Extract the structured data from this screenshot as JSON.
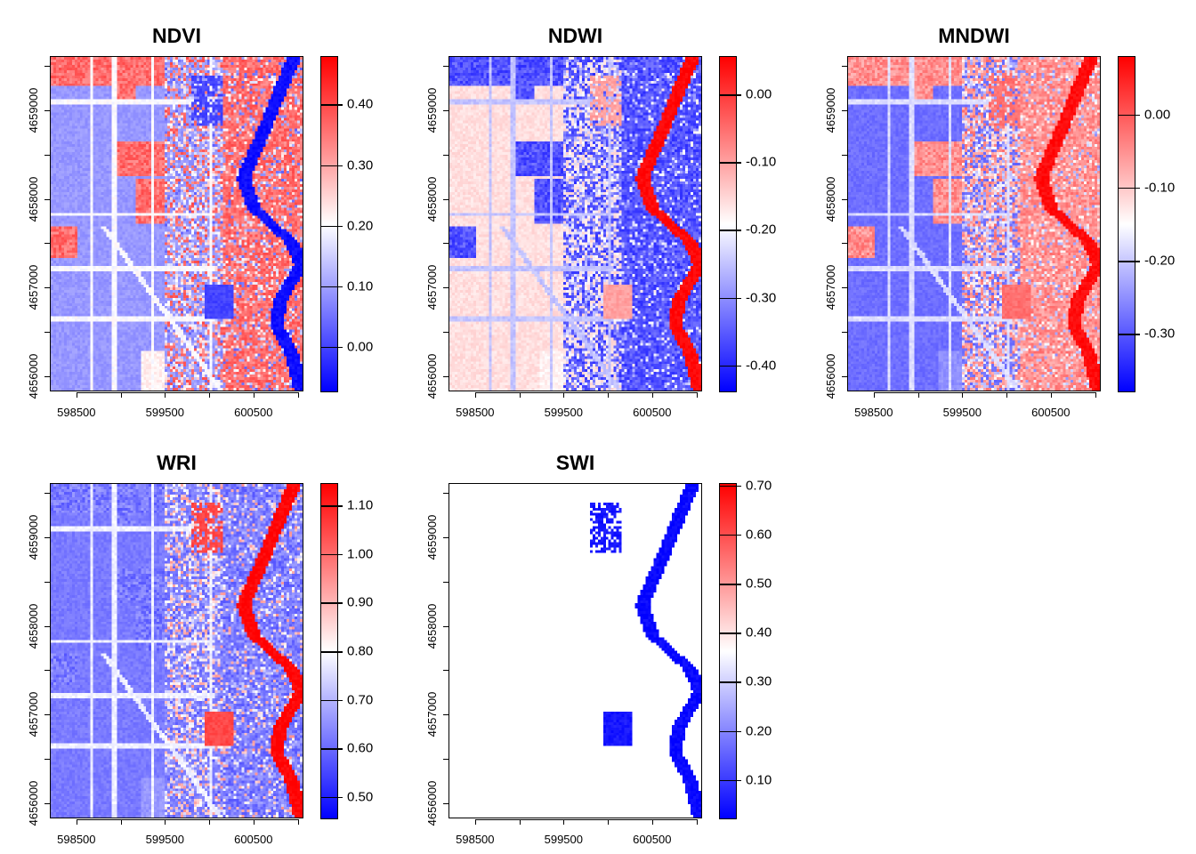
{
  "colors": {
    "low": "#0000ff",
    "mid": "#ffffff",
    "high": "#ff0000",
    "na": "#ffffff"
  },
  "x_axis": {
    "ticks": [
      598500,
      599000,
      599500,
      600000,
      600500,
      601000
    ],
    "labels": [
      "598500",
      "",
      "599500",
      "",
      "600500",
      ""
    ],
    "range": [
      598200,
      601065
    ]
  },
  "y_axis": {
    "ticks": [
      4659500,
      4659000,
      4658500,
      4658000,
      4657500,
      4657000,
      4656500,
      4656000
    ],
    "labels": [
      "",
      "4659000",
      "",
      "4658000",
      "",
      "4657000",
      "",
      "4656000"
    ],
    "range": [
      4655830,
      4659610
    ]
  },
  "panels": [
    {
      "title": "NDVI",
      "legend": {
        "range": [
          -0.075,
          0.48
        ],
        "ticks": [
          0.4,
          0.3,
          0.2,
          0.1,
          0.0
        ],
        "labels": [
          "0.40",
          "0.30",
          "0.20",
          "0.10",
          "0.00"
        ]
      }
    },
    {
      "title": "NDWI",
      "legend": {
        "range": [
          -0.44,
          0.057
        ],
        "ticks": [
          0.0,
          -0.1,
          -0.2,
          -0.3,
          -0.4
        ],
        "labels": [
          "0.00",
          "-0.10",
          "-0.20",
          "-0.30",
          "-0.40"
        ]
      }
    },
    {
      "title": "MNDWI",
      "legend": {
        "range": [
          -0.38,
          0.08
        ],
        "ticks": [
          0.0,
          -0.1,
          -0.2,
          -0.3
        ],
        "labels": [
          "0.00",
          "-0.10",
          "-0.20",
          "-0.30"
        ]
      }
    },
    {
      "title": "WRI",
      "legend": {
        "range": [
          0.454,
          1.146
        ],
        "ticks": [
          1.1,
          1.0,
          0.9,
          0.8,
          0.7,
          0.6,
          0.5
        ],
        "labels": [
          "1.10",
          "1.00",
          "0.90",
          "0.80",
          "0.70",
          "0.60",
          "0.50"
        ]
      }
    },
    {
      "title": "SWI",
      "legend": {
        "range": [
          0.02,
          0.705
        ],
        "ticks": [
          0.7,
          0.6,
          0.5,
          0.4,
          0.3,
          0.2,
          0.1
        ],
        "labels": [
          "0.70",
          "0.60",
          "0.50",
          "0.40",
          "0.30",
          "0.20",
          "0.10"
        ]
      }
    }
  ]
}
